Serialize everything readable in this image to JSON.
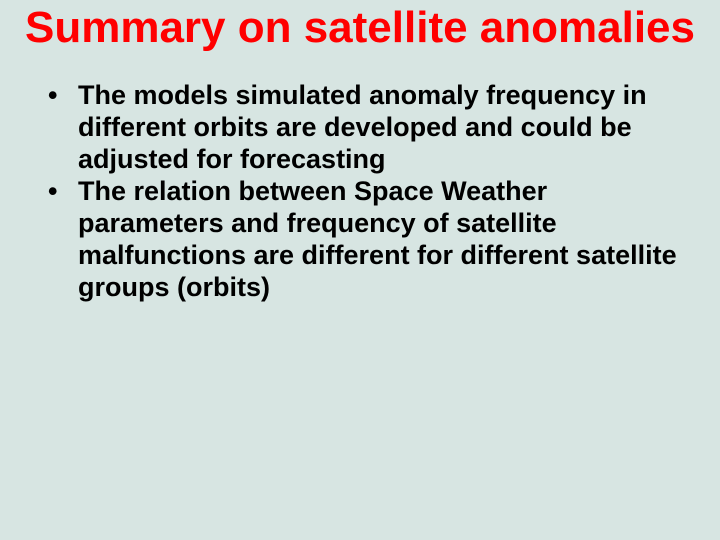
{
  "slide": {
    "title": "Summary on satellite anomalies",
    "title_color": "#ff0000",
    "title_fontsize": 44,
    "background_color": "#d7e5e2",
    "bullets": [
      "The models simulated anomaly frequency in different orbits are developed and could be adjusted for forecasting",
      "The relation between Space Weather parameters and frequency of satellite malfunctions are different for different satellite groups (orbits)"
    ],
    "bullet_color": "#000000",
    "bullet_fontsize": 27
  }
}
